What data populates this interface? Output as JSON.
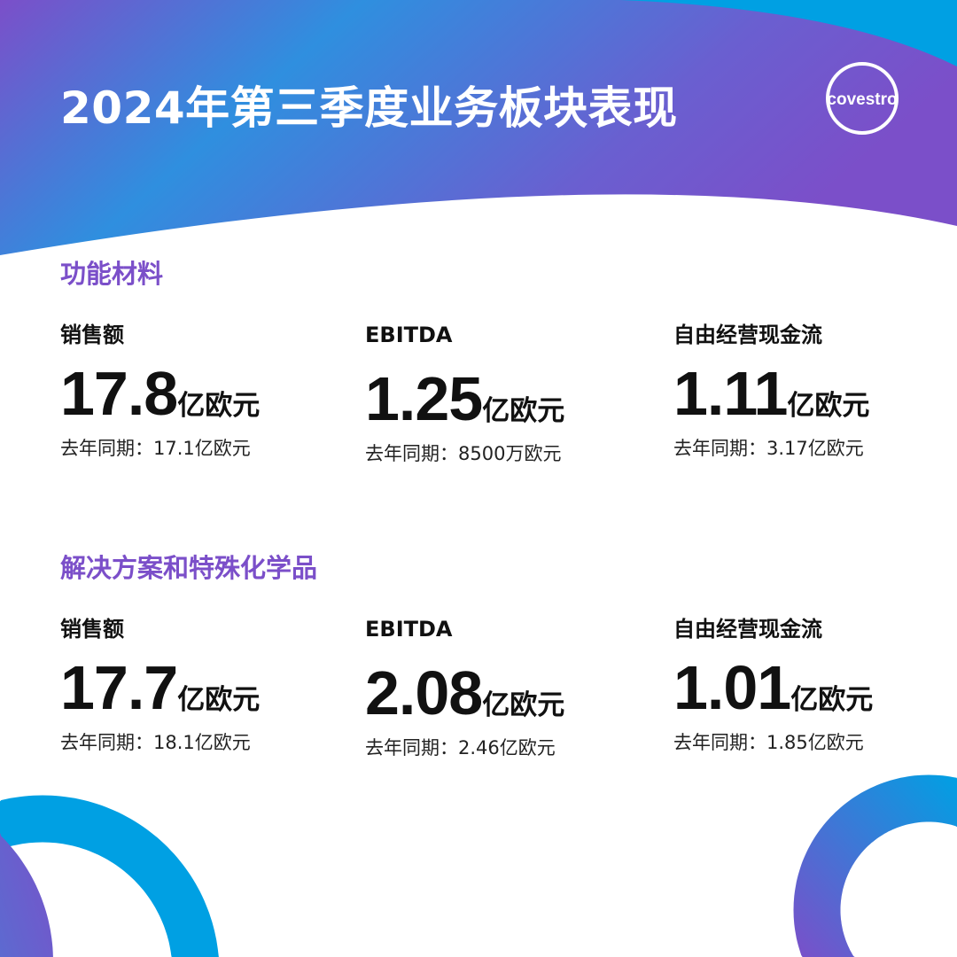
{
  "title": "2024年第三季度业务板块表现",
  "logo_text": "covestro",
  "colors": {
    "purple": "#7b4fc9",
    "blue": "#00a0e3",
    "accent_text": "#7b4fc9"
  },
  "sections": [
    {
      "title": "功能材料",
      "metrics": [
        {
          "label": "销售额",
          "value": "17.8",
          "unit": "亿欧元",
          "prev": "去年同期：17.1亿欧元"
        },
        {
          "label": "EBITDA",
          "value": "1.25",
          "unit": "亿欧元",
          "prev": "去年同期：8500万欧元"
        },
        {
          "label": "自由经营现金流",
          "value": "1.11",
          "unit": "亿欧元",
          "prev": "去年同期：3.17亿欧元"
        }
      ]
    },
    {
      "title": "解决方案和特殊化学品",
      "metrics": [
        {
          "label": "销售额",
          "value": "17.7",
          "unit": "亿欧元",
          "prev": "去年同期：18.1亿欧元"
        },
        {
          "label": "EBITDA",
          "value": "2.08",
          "unit": "亿欧元",
          "prev": "去年同期：2.46亿欧元"
        },
        {
          "label": "自由经营现金流",
          "value": "1.01",
          "unit": "亿欧元",
          "prev": "去年同期：1.85亿欧元"
        }
      ]
    }
  ]
}
